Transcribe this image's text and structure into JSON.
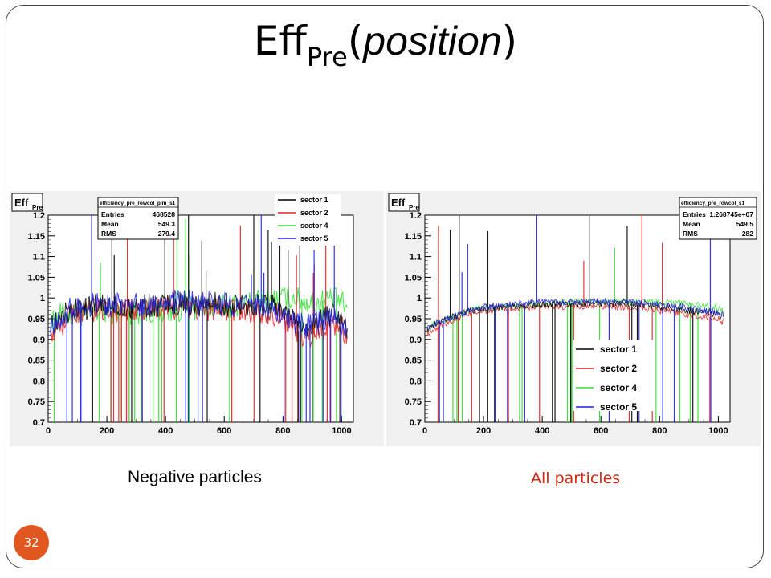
{
  "slide": {
    "title_main": "Eff",
    "title_sub": "Pre",
    "title_italic": "position",
    "caption_left": "Negative particles",
    "caption_right": "All particles",
    "page_number": "32",
    "colors": {
      "accent": "#e0571f",
      "caption_right": "#d02a10"
    }
  },
  "chart_data": [
    {
      "type": "line",
      "title": "",
      "ylabel_main": "Eff",
      "ylabel_sub": "Pre",
      "xlim": [
        0,
        1040
      ],
      "ylim": [
        0.7,
        1.2
      ],
      "xticks": [
        0,
        200,
        400,
        600,
        800,
        1000
      ],
      "yticks": [
        0.7,
        0.75,
        0.8,
        0.85,
        0.9,
        0.95,
        1,
        1.05,
        1.1,
        1.15,
        1.2
      ],
      "grid": false,
      "legend_position": "top-right",
      "stats": {
        "name": "efficiency_pre_rowcol_pim_s1",
        "rows": [
          [
            "Entries",
            "468528"
          ],
          [
            "Mean",
            "549.3"
          ],
          [
            "RMS",
            "279.4"
          ]
        ]
      },
      "series": [
        {
          "name": "sector 1",
          "color": "#000000",
          "x": [
            0,
            40,
            80,
            120,
            160,
            200,
            300,
            400,
            500,
            600,
            700,
            760,
            800,
            840,
            880,
            920,
            960,
            1000,
            1020
          ],
          "y": [
            0.92,
            0.95,
            0.97,
            0.975,
            0.98,
            0.98,
            0.98,
            0.985,
            0.985,
            0.985,
            0.985,
            0.98,
            0.97,
            0.95,
            0.93,
            0.94,
            0.96,
            0.95,
            0.92
          ]
        },
        {
          "name": "sector 2",
          "color": "#e02020",
          "x": [
            0,
            40,
            80,
            120,
            160,
            200,
            300,
            400,
            500,
            600,
            700,
            760,
            800,
            840,
            880,
            920,
            960,
            1000,
            1020
          ],
          "y": [
            0.9,
            0.93,
            0.96,
            0.965,
            0.97,
            0.97,
            0.97,
            0.975,
            0.975,
            0.97,
            0.97,
            0.965,
            0.95,
            0.93,
            0.9,
            0.92,
            0.94,
            0.93,
            0.9
          ]
        },
        {
          "name": "sector 4",
          "color": "#30e030",
          "x": [
            0,
            40,
            80,
            120,
            160,
            200,
            300,
            400,
            500,
            600,
            700,
            760,
            800,
            840,
            880,
            920,
            960,
            1000,
            1020
          ],
          "y": [
            0.93,
            0.96,
            0.96,
            0.96,
            0.965,
            0.965,
            0.965,
            0.97,
            0.975,
            0.98,
            0.99,
            0.995,
            1.0,
            1.0,
            0.99,
            0.99,
            1.0,
            0.99,
            0.97
          ]
        },
        {
          "name": "sector 5",
          "color": "#2020e0",
          "x": [
            0,
            40,
            80,
            120,
            160,
            200,
            300,
            400,
            500,
            600,
            700,
            760,
            800,
            840,
            880,
            920,
            960,
            1000,
            1020
          ],
          "y": [
            0.92,
            0.95,
            0.975,
            0.98,
            0.985,
            0.985,
            0.985,
            0.99,
            0.99,
            0.985,
            0.98,
            0.975,
            0.96,
            0.94,
            0.93,
            0.94,
            0.95,
            0.94,
            0.91
          ]
        }
      ]
    },
    {
      "type": "line",
      "title": "",
      "ylabel_main": "Eff",
      "ylabel_sub": "Pre",
      "xlim": [
        0,
        1040
      ],
      "ylim": [
        0.7,
        1.2
      ],
      "xticks": [
        0,
        200,
        400,
        600,
        800,
        1000
      ],
      "yticks": [
        0.7,
        0.75,
        0.8,
        0.85,
        0.9,
        0.95,
        1,
        1.05,
        1.1,
        1.15,
        1.2
      ],
      "grid": false,
      "legend_position": "bottom-center",
      "stats": {
        "name": "efficiency_pre_rowcol_s1",
        "rows": [
          [
            "Entries",
            "1.268745e+07"
          ],
          [
            "Mean",
            "549.5"
          ],
          [
            "RMS",
            "282"
          ]
        ]
      },
      "series": [
        {
          "name": "sector 1",
          "color": "#000000",
          "x": [
            0,
            40,
            80,
            120,
            160,
            200,
            300,
            400,
            500,
            600,
            700,
            800,
            860,
            900,
            960,
            1000,
            1020
          ],
          "y": [
            0.92,
            0.94,
            0.95,
            0.96,
            0.97,
            0.975,
            0.98,
            0.985,
            0.985,
            0.985,
            0.985,
            0.98,
            0.975,
            0.97,
            0.965,
            0.96,
            0.95
          ]
        },
        {
          "name": "sector 2",
          "color": "#e02020",
          "x": [
            0,
            40,
            80,
            120,
            160,
            200,
            300,
            400,
            500,
            600,
            700,
            800,
            860,
            900,
            960,
            1000,
            1020
          ],
          "y": [
            0.91,
            0.93,
            0.94,
            0.955,
            0.965,
            0.97,
            0.975,
            0.978,
            0.98,
            0.98,
            0.978,
            0.97,
            0.965,
            0.96,
            0.955,
            0.95,
            0.94
          ]
        },
        {
          "name": "sector 4",
          "color": "#30e030",
          "x": [
            0,
            40,
            80,
            120,
            160,
            200,
            300,
            400,
            500,
            600,
            700,
            800,
            860,
            900,
            960,
            1000,
            1020
          ],
          "y": [
            0.92,
            0.94,
            0.95,
            0.96,
            0.97,
            0.975,
            0.98,
            0.985,
            0.99,
            0.99,
            0.99,
            0.99,
            0.99,
            0.985,
            0.98,
            0.975,
            0.965
          ]
        },
        {
          "name": "sector 5",
          "color": "#2020e0",
          "x": [
            0,
            40,
            80,
            120,
            160,
            200,
            300,
            400,
            500,
            600,
            700,
            800,
            860,
            900,
            960,
            1000,
            1020
          ],
          "y": [
            0.92,
            0.94,
            0.95,
            0.96,
            0.97,
            0.978,
            0.985,
            0.99,
            0.99,
            0.99,
            0.99,
            0.985,
            0.98,
            0.975,
            0.97,
            0.965,
            0.955
          ]
        }
      ]
    }
  ]
}
